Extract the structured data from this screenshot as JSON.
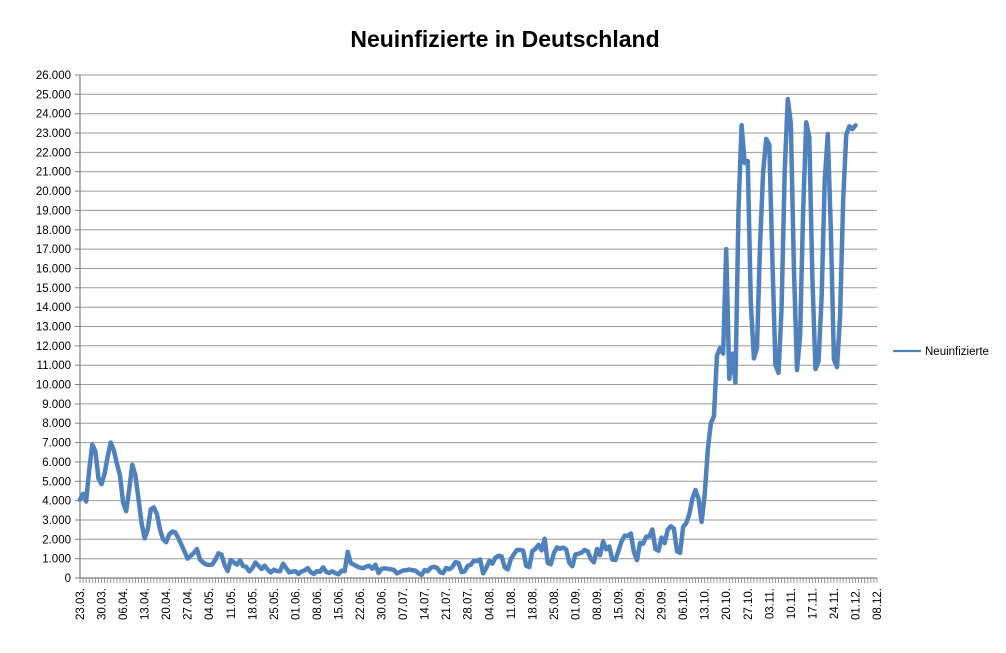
{
  "title": "Neuinfizierte in Deutschland",
  "legend": {
    "items": [
      {
        "label": "Neuinfizierte",
        "color": "#4F81BD"
      }
    ]
  },
  "colors": {
    "series": "#4F81BD",
    "gridline": "#999999",
    "axis": "#808080",
    "text": "#000000",
    "background": "#FFFFFF"
  },
  "chart_data": {
    "type": "line",
    "title": "Neuinfizierte in Deutschland",
    "xlabel": "",
    "ylabel": "",
    "ylim": [
      0,
      26000
    ],
    "y_tick_step": 1000,
    "grid": "horizontal",
    "legend_position": "right",
    "y_tick_labels": [
      "0",
      "1.000",
      "2.000",
      "3.000",
      "4.000",
      "5.000",
      "6.000",
      "7.000",
      "8.000",
      "9.000",
      "10.000",
      "11.000",
      "12.000",
      "13.000",
      "14.000",
      "15.000",
      "16.000",
      "17.000",
      "18.000",
      "19.000",
      "20.000",
      "21.000",
      "22.000",
      "23.000",
      "24.000",
      "25.000",
      "26.000"
    ],
    "x_tick_labels": [
      "23.03.",
      "30.03.",
      "06.04.",
      "13.04.",
      "20.04.",
      "27.04.",
      "04.05.",
      "11.05.",
      "18.05.",
      "25.05.",
      "01.06.",
      "08.06.",
      "15.06.",
      "22.06.",
      "30.06.",
      "07.07.",
      "14.07.",
      "21.07.",
      "28.07.",
      "04.08.",
      "11.08.",
      "18.08.",
      "25.08.",
      "01.09.",
      "08.09.",
      "15.09.",
      "22.09.",
      "29.09.",
      "06.10.",
      "13.10.",
      "20.10.",
      "27.10.",
      "03.11.",
      "10.11.",
      "17.11.",
      "24.11.",
      "01.12.",
      "08.12."
    ],
    "x_tick_interval_categories": 7,
    "x_total_categories": 260,
    "series": [
      {
        "name": "Neuinfizierte",
        "color": "#4F81BD",
        "values": [
          4050,
          4350,
          3950,
          5600,
          6900,
          6550,
          5150,
          4850,
          5400,
          6300,
          7000,
          6600,
          5900,
          5300,
          3900,
          3450,
          4600,
          5850,
          5300,
          4100,
          2850,
          2050,
          2500,
          3550,
          3650,
          3300,
          2500,
          2000,
          1850,
          2250,
          2400,
          2350,
          2050,
          1700,
          1350,
          1000,
          1150,
          1300,
          1500,
          950,
          800,
          700,
          680,
          700,
          950,
          1280,
          1200,
          670,
          360,
          930,
          800,
          690,
          910,
          620,
          580,
          340,
          510,
          800,
          640,
          460,
          640,
          430,
          290,
          430,
          360,
          350,
          740,
          510,
          290,
          330,
          350,
          210,
          340,
          390,
          510,
          300,
          210,
          350,
          320,
          550,
          320,
          260,
          350,
          250,
          190,
          380,
          350,
          1350,
          770,
          690,
          600,
          540,
          500,
          590,
          630,
          480,
          690,
          260,
          470,
          500,
          470,
          450,
          420,
          240,
          310,
          390,
          400,
          440,
          400,
          380,
          250,
          160,
          410,
          350,
          530,
          580,
          530,
          310,
          250,
          520,
          450,
          570,
          820,
          780,
          310,
          340,
          630,
          680,
          900,
          870,
          960,
          240,
          510,
          880,
          740,
          1050,
          1150,
          1120,
          560,
          440,
          970,
          1230,
          1450,
          1450,
          1420,
          630,
          560,
          1390,
          1510,
          1710,
          1430,
          2030,
          780,
          710,
          1280,
          1580,
          1510,
          1570,
          1480,
          790,
          610,
          1220,
          1260,
          1310,
          1450,
          1380,
          990,
          810,
          1500,
          1180,
          1890,
          1480,
          1630,
          950,
          930,
          1410,
          1900,
          2190,
          2180,
          2300,
          1350,
          920,
          1820,
          1770,
          2140,
          2150,
          2510,
          1490,
          1410,
          2090,
          1800,
          2500,
          2670,
          2560,
          1380,
          1300,
          2640,
          2830,
          3300,
          4100,
          4550,
          4100,
          2900,
          4300,
          6600,
          8000,
          8350,
          11500,
          11900,
          11600,
          17000,
          10300,
          11600,
          10100,
          19100,
          23400,
          21450,
          21550,
          14200,
          11350,
          11900,
          17250,
          21000,
          22700,
          22400,
          16500,
          11000,
          10600,
          14000,
          21000,
          24750,
          23500,
          16000,
          10750,
          12500,
          19000,
          23550,
          22800,
          15500,
          10800,
          11200,
          14500,
          20500,
          22950,
          18000,
          11300,
          10900,
          13500,
          19500,
          22900,
          23350,
          23200,
          23400
        ]
      }
    ]
  }
}
